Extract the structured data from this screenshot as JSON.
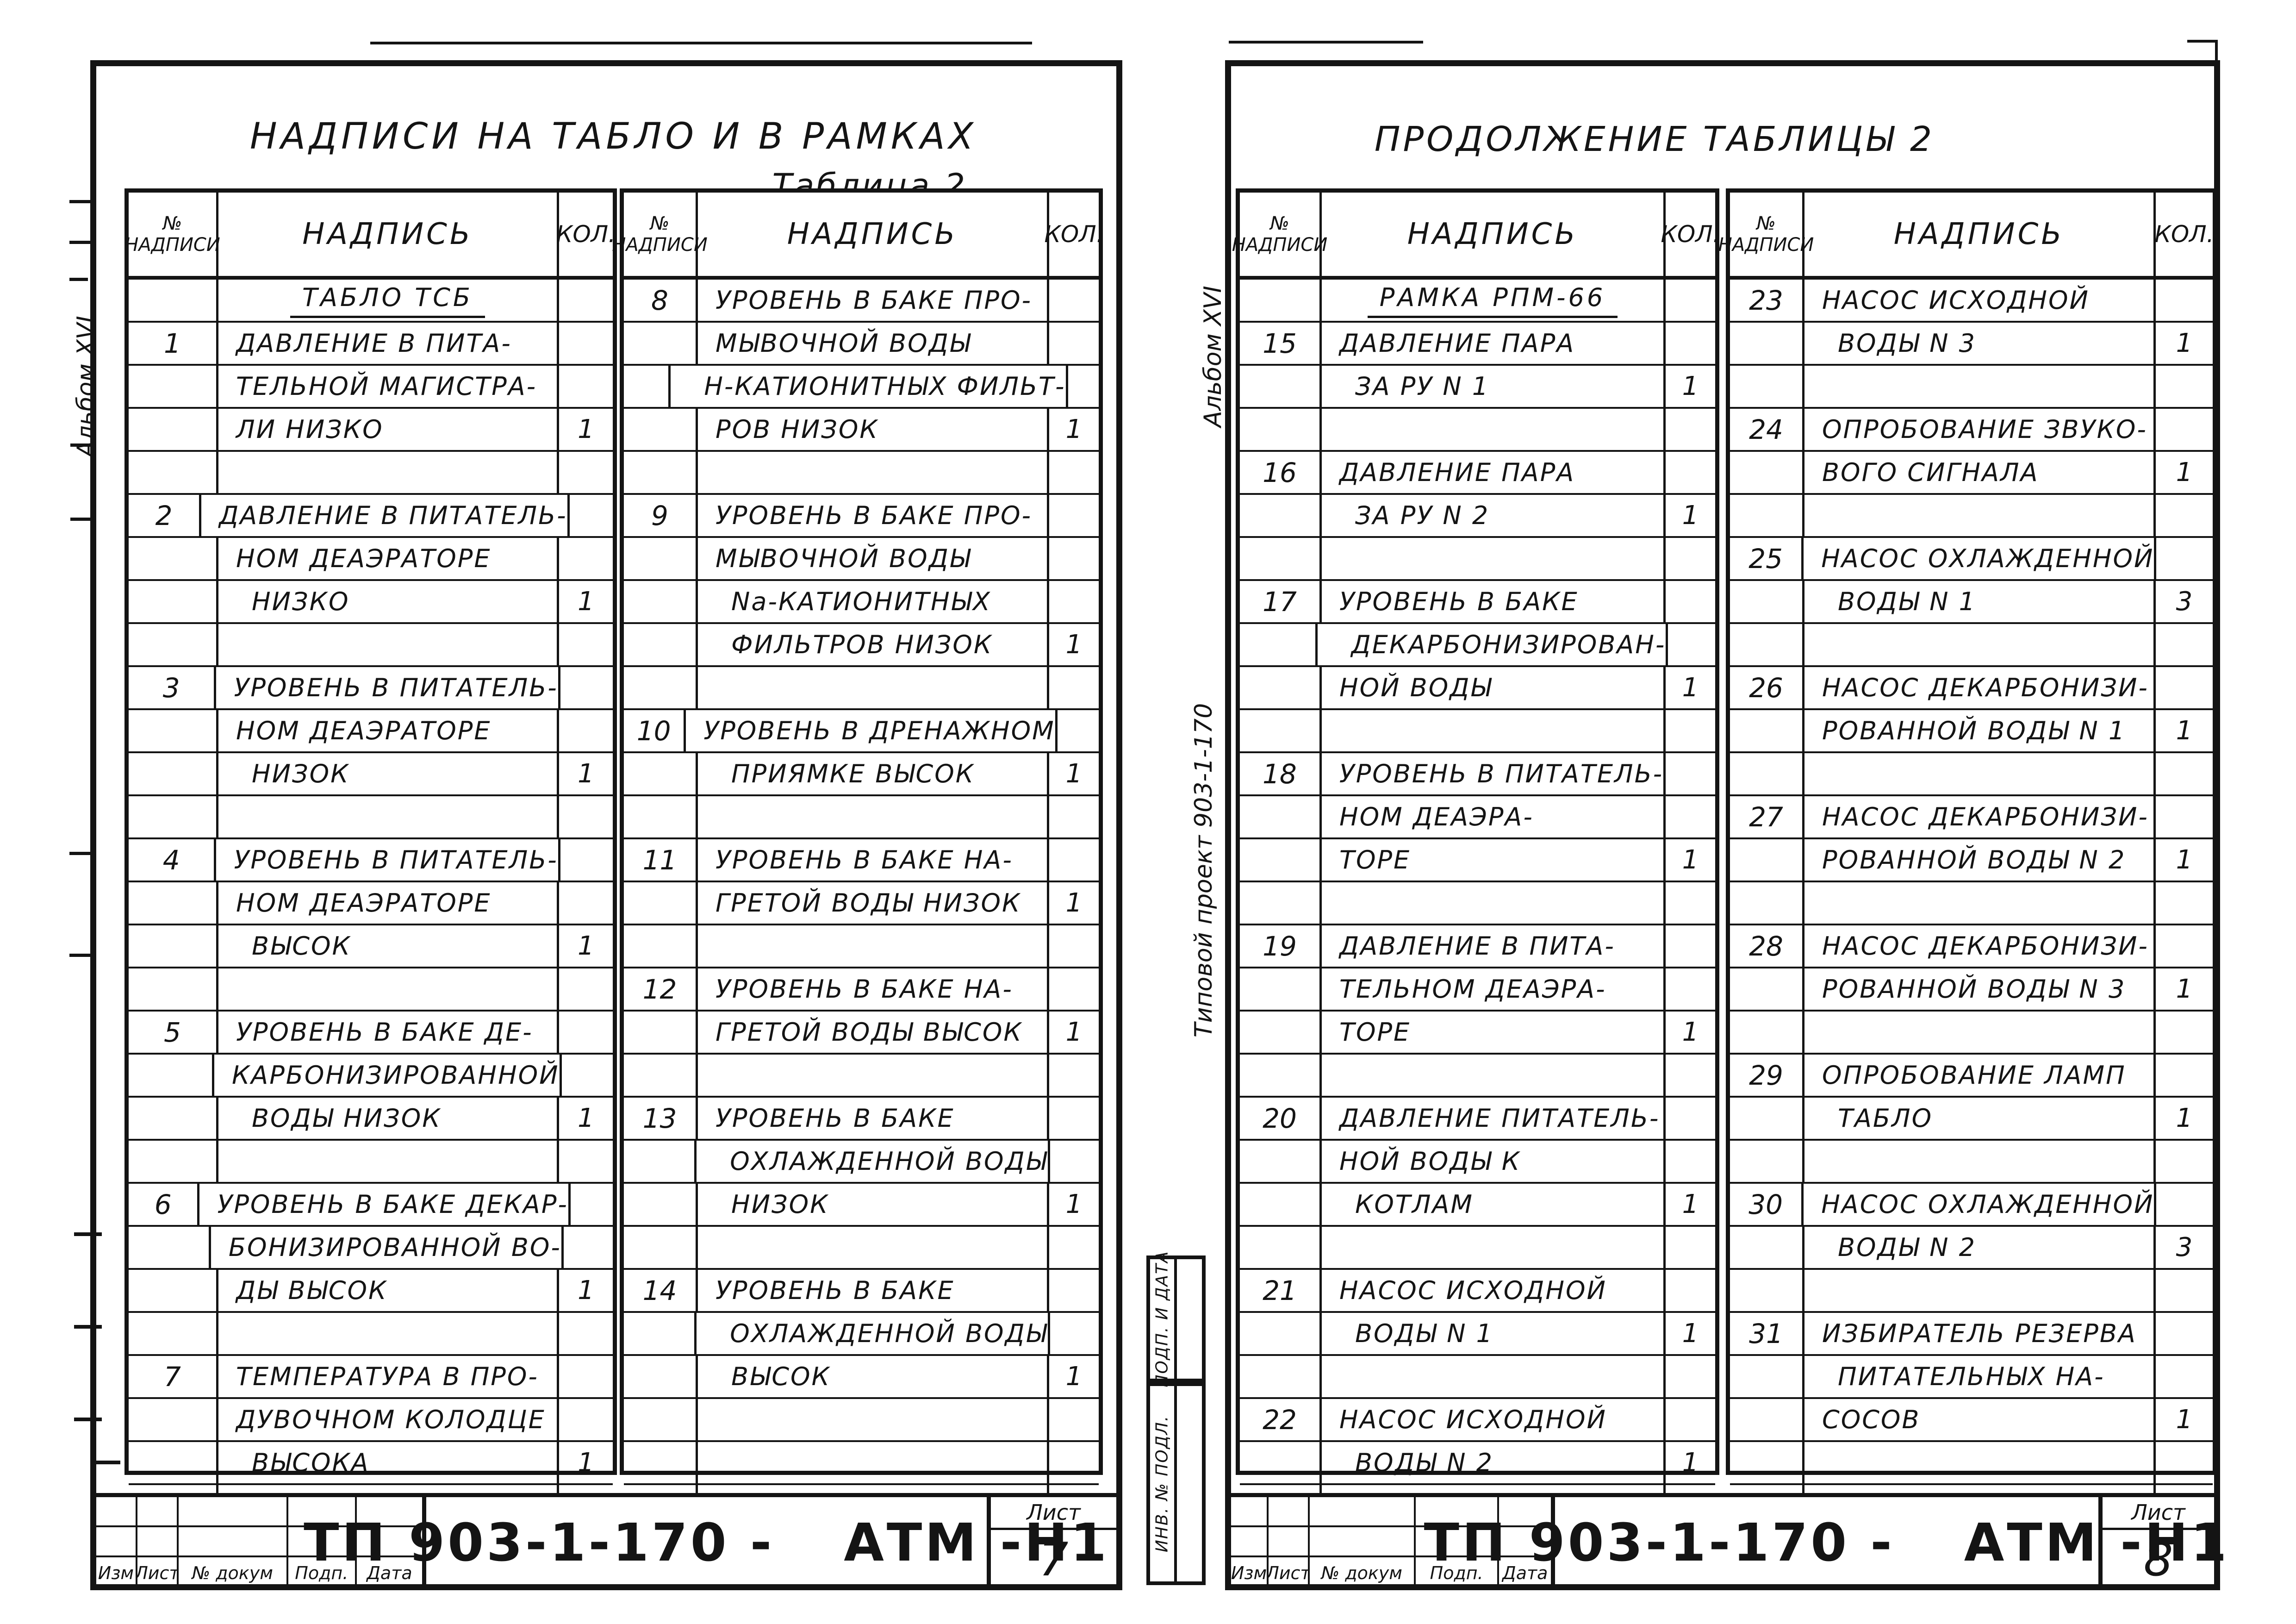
{
  "palette": {
    "ink": "#141414",
    "paper": "#ffffff"
  },
  "document": {
    "kind": "scanned engineering drawing, GOST title block",
    "project_code": "ТП 903-1-170",
    "set_code": "АТМ-Н1"
  },
  "sheets": [
    {
      "sheet_number": "7",
      "title": "НАДПИСИ НА ТАБЛО И В РАМКАХ",
      "caption": "Таблица 2",
      "margin_labels": [
        "Альбом XVI"
      ],
      "stamps": [],
      "header": {
        "num_top": "№",
        "num_bottom": "НАДПИСИ",
        "label": "НАДПИСЬ",
        "qty": "КОЛ."
      },
      "columns": [
        {
          "entries": [
            {
              "heading": "ТАБЛО ТСБ"
            },
            {
              "num": "1",
              "qty": "1",
              "lines": [
                "ДАВЛЕНИЕ В ПИТА-",
                "ТЕЛЬНОЙ МАГИСТРА-",
                "ЛИ НИЗКО"
              ]
            },
            {
              "num": "2",
              "qty": "1",
              "lines": [
                "ДАВЛЕНИЕ В ПИТАТЕЛЬ-",
                "НОМ ДЕАЭРАТОРЕ",
                "НИЗКО"
              ]
            },
            {
              "num": "3",
              "qty": "1",
              "lines": [
                "УРОВЕНЬ В ПИТАТЕЛЬ-",
                "НОМ ДЕАЭРАТОРЕ",
                "НИЗОК"
              ]
            },
            {
              "num": "4",
              "qty": "1",
              "lines": [
                "УРОВЕНЬ В ПИТАТЕЛЬ-",
                "НОМ ДЕАЭРАТОРЕ",
                "ВЫСОК"
              ]
            },
            {
              "num": "5",
              "qty": "1",
              "lines": [
                "УРОВЕНЬ В БАКЕ ДЕ-",
                "КАРБОНИЗИРОВАННОЙ",
                "ВОДЫ НИЗОК"
              ]
            },
            {
              "num": "6",
              "qty": "1",
              "lines": [
                "УРОВЕНЬ В БАКЕ ДЕКАР-",
                "БОНИЗИРОВАННОЙ ВО-",
                "ДЫ ВЫСОК"
              ]
            },
            {
              "num": "7",
              "qty": "1",
              "lines": [
                "ТЕМПЕРАТУРА В ПРО-",
                "ДУВОЧНОМ КОЛОДЦЕ",
                "ВЫСОКА"
              ]
            }
          ]
        },
        {
          "entries": [
            {
              "num": "8",
              "qty": "1",
              "lines": [
                "УРОВЕНЬ В БАКЕ ПРО-",
                "МЫВОЧНОЙ ВОДЫ",
                "Н-КАТИОНИТНЫХ ФИЛЬТ-",
                "РОВ НИЗОК"
              ]
            },
            {
              "num": "9",
              "qty": "1",
              "lines": [
                "УРОВЕНЬ В БАКЕ ПРО-",
                "МЫВОЧНОЙ ВОДЫ",
                "Na-КАТИОНИТНЫХ",
                "ФИЛЬТРОВ НИЗОК"
              ]
            },
            {
              "num": "10",
              "qty": "1",
              "lines": [
                "УРОВЕНЬ В ДРЕНАЖНОМ",
                "ПРИЯМКЕ ВЫСОК"
              ]
            },
            {
              "num": "11",
              "qty": "1",
              "lines": [
                "УРОВЕНЬ В БАКЕ НА-",
                "ГРЕТОЙ ВОДЫ НИЗОК"
              ]
            },
            {
              "num": "12",
              "qty": "1",
              "lines": [
                "УРОВЕНЬ В БАКЕ НА-",
                "ГРЕТОЙ ВОДЫ ВЫСОК"
              ]
            },
            {
              "num": "13",
              "qty": "1",
              "lines": [
                "УРОВЕНЬ В БАКЕ",
                "ОХЛАЖДЕННОЙ ВОДЫ",
                "НИЗОК"
              ]
            },
            {
              "num": "14",
              "qty": "1",
              "lines": [
                "УРОВЕНЬ В БАКЕ",
                "ОХЛАЖДЕННОЙ ВОДЫ",
                "ВЫСОК"
              ]
            }
          ]
        }
      ],
      "titleblock": {
        "revision_labels": [
          "Изм",
          "Лист",
          "№ докум",
          "Подп.",
          "Дата"
        ],
        "doc_code": "ТП 903-1-170 -",
        "doc_suffix": "АТМ -Н1",
        "sheet_label": "Лист",
        "sheet_number": "7"
      }
    },
    {
      "sheet_number": "8",
      "title": "ПРОДОЛЖЕНИЕ ТАБЛИЦЫ 2",
      "caption": "",
      "margin_labels": [
        "Альбом XVI",
        "Типовой проект 903-1-170"
      ],
      "stamps": [
        "ПОДП. И ДАТА",
        "ИНВ. № ПОДЛ."
      ],
      "header": {
        "num_top": "№",
        "num_bottom": "НАДПИСИ",
        "label": "НАДПИСЬ",
        "qty": "КОЛ."
      },
      "columns": [
        {
          "entries": [
            {
              "heading": "РАМКА РПМ-66"
            },
            {
              "num": "15",
              "qty": "1",
              "lines": [
                "ДАВЛЕНИЕ ПАРА",
                "ЗА РУ N 1"
              ]
            },
            {
              "num": "16",
              "qty": "1",
              "lines": [
                "ДАВЛЕНИЕ ПАРА",
                "ЗА РУ N 2"
              ]
            },
            {
              "num": "17",
              "qty": "1",
              "lines": [
                "УРОВЕНЬ В БАКЕ",
                "ДЕКАРБОНИЗИРОВАН-",
                "НОЙ ВОДЫ"
              ]
            },
            {
              "num": "18",
              "qty": "1",
              "lines": [
                "УРОВЕНЬ В ПИТАТЕЛЬ-",
                "НОМ ДЕАЭРА-",
                "ТОРЕ"
              ]
            },
            {
              "num": "19",
              "qty": "1",
              "lines": [
                "ДАВЛЕНИЕ В ПИТА-",
                "ТЕЛЬНОМ ДЕАЭРА-",
                "ТОРЕ"
              ]
            },
            {
              "num": "20",
              "qty": "1",
              "lines": [
                "ДАВЛЕНИЕ ПИТАТЕЛЬ-",
                "НОЙ ВОДЫ К",
                "КОТЛАМ"
              ]
            },
            {
              "num": "21",
              "qty": "1",
              "lines": [
                "НАСОС ИСХОДНОЙ",
                "ВОДЫ N 1"
              ]
            },
            {
              "num": "22",
              "qty": "1",
              "lines": [
                "НАСОС ИСХОДНОЙ",
                "ВОДЫ N 2"
              ]
            }
          ]
        },
        {
          "entries": [
            {
              "num": "23",
              "qty": "1",
              "lines": [
                "НАСОС ИСХОДНОЙ",
                "ВОДЫ N 3"
              ]
            },
            {
              "num": "24",
              "qty": "1",
              "lines": [
                "ОПРОБОВАНИЕ ЗВУКО-",
                "ВОГО СИГНАЛА"
              ]
            },
            {
              "num": "25",
              "qty": "3",
              "lines": [
                "НАСОС ОХЛАЖДЕННОЙ",
                "ВОДЫ N 1"
              ]
            },
            {
              "num": "26",
              "qty": "1",
              "lines": [
                "НАСОС ДЕКАРБОНИЗИ-",
                "РОВАННОЙ ВОДЫ N 1"
              ]
            },
            {
              "num": "27",
              "qty": "1",
              "lines": [
                "НАСОС ДЕКАРБОНИЗИ-",
                "РОВАННОЙ ВОДЫ N 2"
              ]
            },
            {
              "num": "28",
              "qty": "1",
              "lines": [
                "НАСОС ДЕКАРБОНИЗИ-",
                "РОВАННОЙ ВОДЫ N 3"
              ]
            },
            {
              "num": "29",
              "qty": "1",
              "lines": [
                "ОПРОБОВАНИЕ ЛАМП",
                "ТАБЛО"
              ]
            },
            {
              "num": "30",
              "qty": "3",
              "lines": [
                "НАСОС ОХЛАЖДЕННОЙ",
                "ВОДЫ N 2"
              ]
            },
            {
              "num": "31",
              "qty": "1",
              "lines": [
                "ИЗБИРАТЕЛЬ РЕЗЕРВА",
                "ПИТАТЕЛЬНЫХ НА-",
                "СОСОВ"
              ]
            }
          ]
        }
      ],
      "titleblock": {
        "revision_labels": [
          "Изм",
          "Лист",
          "№ докум",
          "Подп.",
          "Дата"
        ],
        "doc_code": "ТП 903-1-170 -",
        "doc_suffix": "АТМ -Н1",
        "sheet_label": "Лист",
        "sheet_number": "8"
      }
    }
  ]
}
